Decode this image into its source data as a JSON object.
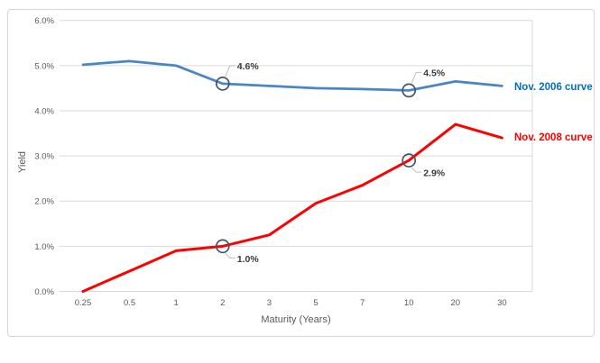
{
  "chart_data": {
    "type": "line",
    "title": "",
    "xlabel": "Maturity (Years)",
    "ylabel": "Yield",
    "categories": [
      "0.25",
      "0.5",
      "1",
      "2",
      "3",
      "5",
      "7",
      "10",
      "20",
      "30"
    ],
    "y_tick_labels": [
      "0.0%",
      "1.0%",
      "2.0%",
      "3.0%",
      "4.0%",
      "5.0%",
      "6.0%"
    ],
    "ylim": [
      0,
      6
    ],
    "grid": true,
    "legend_position": "series labels at line ends, right of plot",
    "series": [
      {
        "name": "Nov. 2006 curve",
        "color": "#4A86C6",
        "label_color": "#0070C0",
        "values": [
          5.02,
          5.1,
          5.0,
          4.6,
          4.55,
          4.5,
          4.48,
          4.45,
          4.65,
          4.55
        ]
      },
      {
        "name": "Nov. 2008 curve",
        "color": "#FF0000",
        "label_color": "#FF0000",
        "values": [
          0.0,
          0.45,
          0.9,
          1.0,
          1.25,
          1.95,
          2.35,
          2.9,
          3.7,
          3.4
        ]
      }
    ],
    "annotations": [
      {
        "series": 0,
        "category": "2",
        "label": "4.6%",
        "placement": "above"
      },
      {
        "series": 0,
        "category": "10",
        "label": "4.5%",
        "placement": "above"
      },
      {
        "series": 1,
        "category": "2",
        "label": "1.0%",
        "placement": "below"
      },
      {
        "series": 1,
        "category": "10",
        "label": "2.9%",
        "placement": "below"
      }
    ],
    "marker_outline_color": "#44546A",
    "gridline_color": "#D9D9D9",
    "axis_text_color": "#595959",
    "annotation_text_color": "#3B3B3B",
    "leader_line_color": "#BFBFBF"
  }
}
